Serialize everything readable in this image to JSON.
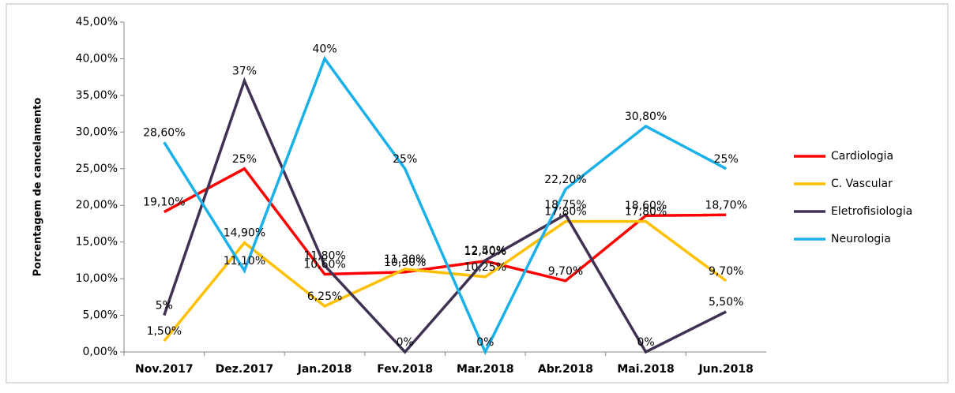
{
  "chart_data": {
    "type": "line",
    "y_label": "Porcentagem de cancelamento",
    "categories": [
      "Nov.2017",
      "Dez.2017",
      "Jan.2018",
      "Fev.2018",
      "Mar.2018",
      "Abr.2018",
      "Mai.2018",
      "Jun.2018"
    ],
    "series": [
      {
        "name": "Cardiologia",
        "color": "#ff0000",
        "values": [
          19.1,
          25,
          10.6,
          10.9,
          12.4,
          9.7,
          18.6,
          18.7
        ],
        "value_labels": [
          "19,10%",
          "25%",
          "10,60%",
          "10,90%",
          "12,40%",
          "9,70%",
          "18,60%",
          "18,70%"
        ]
      },
      {
        "name": "C. Vascular",
        "color": "#ffc000",
        "values": [
          1.5,
          14.9,
          6.25,
          11.3,
          10.25,
          17.8,
          17.8,
          9.7
        ],
        "value_labels": [
          "1,50%",
          "14,90%",
          "6,25%",
          "11,30%",
          "10,25%",
          "17,80%",
          "17,80%",
          "9,70%"
        ]
      },
      {
        "name": "Eletrofisiologia",
        "color": "#403152",
        "values": [
          5,
          37,
          11.8,
          0,
          12.5,
          18.75,
          0,
          5.5
        ],
        "value_labels": [
          "5%",
          "37%",
          "11,80%",
          "0%",
          "12,50%",
          "18,75%",
          "0%",
          "5,50%"
        ]
      },
      {
        "name": "Neurologia",
        "color": "#1ab0e8",
        "values": [
          28.6,
          11.1,
          40,
          25,
          0,
          22.2,
          30.8,
          25
        ],
        "value_labels": [
          "28,60%",
          "11,10%",
          "40%",
          "25%",
          "0%",
          "22,20%",
          "30,80%",
          "25%"
        ]
      }
    ],
    "ylim": [
      0,
      45
    ],
    "yticks": [
      {
        "value": 0,
        "label": "0,00%"
      },
      {
        "value": 5,
        "label": "5,00%"
      },
      {
        "value": 10,
        "label": "10,00%"
      },
      {
        "value": 15,
        "label": "15,00%"
      },
      {
        "value": 20,
        "label": "20,00%"
      },
      {
        "value": 25,
        "label": "25,00%"
      },
      {
        "value": 30,
        "label": "30,00%"
      },
      {
        "value": 35,
        "label": "35,00%"
      },
      {
        "value": 40,
        "label": "40,00%"
      },
      {
        "value": 45,
        "label": "45,00%"
      }
    ],
    "legend": "right"
  }
}
